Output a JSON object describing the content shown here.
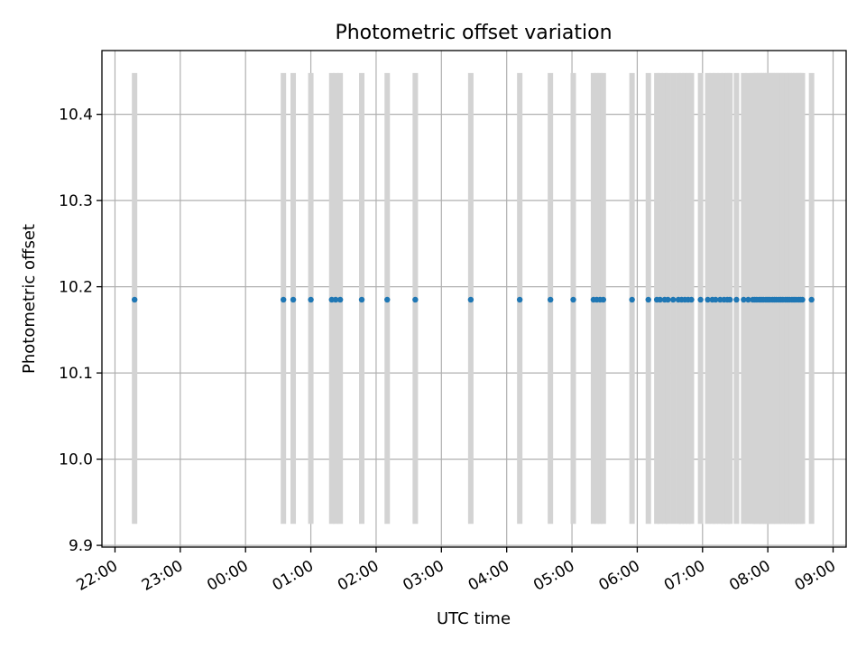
{
  "chart_data": {
    "type": "scatter",
    "title": "Photometric offset variation",
    "xlabel": "UTC time",
    "ylabel": "Photometric offset",
    "x_tick_labels": [
      "22:00",
      "23:00",
      "00:00",
      "01:00",
      "02:00",
      "03:00",
      "04:00",
      "05:00",
      "06:00",
      "07:00",
      "08:00",
      "09:00"
    ],
    "x_tick_hours": [
      22,
      23,
      24,
      25,
      26,
      27,
      28,
      29,
      30,
      31,
      32,
      33
    ],
    "xlim_hours": [
      21.8,
      33.2
    ],
    "y_ticks": [
      9.9,
      10.0,
      10.1,
      10.2,
      10.3,
      10.4
    ],
    "y_tick_labels": [
      "9.9",
      "10.0",
      "10.1",
      "10.2",
      "10.3",
      "10.4"
    ],
    "ylim": [
      9.898,
      10.474
    ],
    "grid": true,
    "points_color": "#1f77b4",
    "errorbar_color": "#d3d3d3",
    "errorbar_range": [
      9.925,
      10.448
    ],
    "times": [
      "22:18",
      "00:35",
      "00:44",
      "01:00",
      "01:19",
      "01:23",
      "01:27",
      "01:47",
      "02:10",
      "02:36",
      "03:27",
      "04:12",
      "04:40",
      "05:01",
      "05:20",
      "05:23",
      "05:26",
      "05:29",
      "05:55",
      "06:10",
      "06:18",
      "06:21",
      "06:25",
      "06:28",
      "06:33",
      "06:38",
      "06:41",
      "06:44",
      "06:47",
      "06:50",
      "06:58",
      "07:05",
      "07:09",
      "07:12",
      "07:16",
      "07:20",
      "07:23",
      "07:25",
      "07:31",
      "07:38",
      "07:42",
      "07:46",
      "07:48",
      "07:50",
      "07:52",
      "07:54",
      "07:56",
      "07:58",
      "08:00",
      "08:02",
      "08:04",
      "08:06",
      "08:08",
      "08:10",
      "08:12",
      "08:14",
      "08:16",
      "08:18",
      "08:20",
      "08:22",
      "08:24",
      "08:26",
      "08:28",
      "08:30",
      "08:32",
      "08:40"
    ],
    "x_hours": [
      22.3,
      24.58,
      24.73,
      25.0,
      25.32,
      25.38,
      25.45,
      25.78,
      26.17,
      26.6,
      27.45,
      28.2,
      28.67,
      29.02,
      29.33,
      29.38,
      29.43,
      29.48,
      29.92,
      30.17,
      30.3,
      30.35,
      30.42,
      30.47,
      30.55,
      30.63,
      30.68,
      30.73,
      30.78,
      30.83,
      30.97,
      31.08,
      31.15,
      31.2,
      31.27,
      31.33,
      31.38,
      31.42,
      31.52,
      31.63,
      31.7,
      31.77,
      31.8,
      31.83,
      31.87,
      31.9,
      31.93,
      31.97,
      32.0,
      32.03,
      32.07,
      32.1,
      32.13,
      32.17,
      32.2,
      32.23,
      32.27,
      32.3,
      32.33,
      32.37,
      32.4,
      32.43,
      32.47,
      32.5,
      32.53,
      32.67
    ],
    "values": [
      10.185,
      10.185,
      10.185,
      10.185,
      10.185,
      10.185,
      10.185,
      10.185,
      10.185,
      10.185,
      10.185,
      10.185,
      10.185,
      10.185,
      10.185,
      10.185,
      10.185,
      10.185,
      10.185,
      10.185,
      10.185,
      10.185,
      10.185,
      10.185,
      10.185,
      10.185,
      10.185,
      10.185,
      10.185,
      10.185,
      10.185,
      10.185,
      10.185,
      10.185,
      10.185,
      10.185,
      10.185,
      10.185,
      10.185,
      10.185,
      10.185,
      10.185,
      10.185,
      10.185,
      10.185,
      10.185,
      10.185,
      10.185,
      10.185,
      10.185,
      10.185,
      10.185,
      10.185,
      10.185,
      10.185,
      10.185,
      10.185,
      10.185,
      10.185,
      10.185,
      10.185,
      10.185,
      10.185,
      10.185,
      10.185,
      10.185
    ]
  }
}
